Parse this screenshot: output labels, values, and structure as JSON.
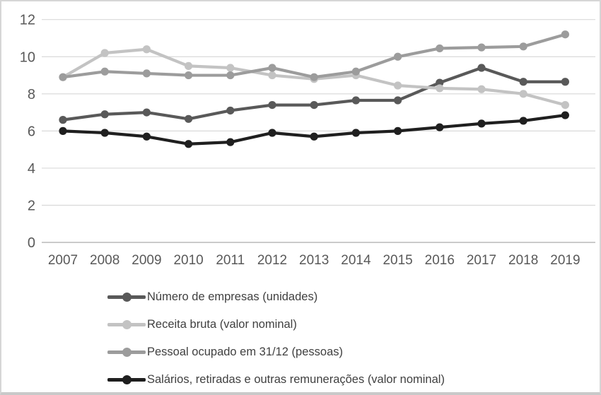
{
  "chart_data": {
    "type": "line",
    "categories": [
      "2007",
      "2008",
      "2009",
      "2010",
      "2011",
      "2012",
      "2013",
      "2014",
      "2015",
      "2016",
      "2017",
      "2018",
      "2019"
    ],
    "series": [
      {
        "name": "Número de empresas (unidades)",
        "color": "#595959",
        "values": [
          6.6,
          6.9,
          7.0,
          6.65,
          7.1,
          7.4,
          7.4,
          7.65,
          7.65,
          8.6,
          9.4,
          8.65,
          8.65
        ]
      },
      {
        "name": "Receita bruta (valor nominal)",
        "color": "#c3c3c3",
        "values": [
          8.9,
          10.2,
          10.4,
          9.5,
          9.4,
          9.0,
          8.8,
          9.0,
          8.45,
          8.3,
          8.25,
          8.0,
          7.4
        ]
      },
      {
        "name": "Pessoal ocupado em 31/12 (pessoas)",
        "color": "#9c9c9c",
        "values": [
          8.9,
          9.2,
          9.1,
          9.0,
          9.0,
          9.4,
          8.9,
          9.2,
          10.0,
          10.45,
          10.5,
          10.55,
          11.2
        ]
      },
      {
        "name": "Salários, retiradas e outras remunerações (valor nominal)",
        "color": "#1f1f1f",
        "values": [
          6.0,
          5.9,
          5.7,
          5.3,
          5.4,
          5.9,
          5.7,
          5.9,
          6.0,
          6.2,
          6.4,
          6.55,
          6.85
        ]
      }
    ],
    "title": "",
    "xlabel": "",
    "ylabel": "",
    "ylim": [
      0,
      12
    ],
    "y_ticks": [
      0,
      2,
      4,
      6,
      8,
      10,
      12
    ],
    "grid": "horizontal",
    "legend_position": "bottom"
  },
  "style": {
    "grid_color": "#d9d9d9",
    "axis_line_color": "#bfbfbf",
    "tick_label_color": "#595959",
    "legend_text_color": "#404040",
    "background": "#ffffff"
  }
}
